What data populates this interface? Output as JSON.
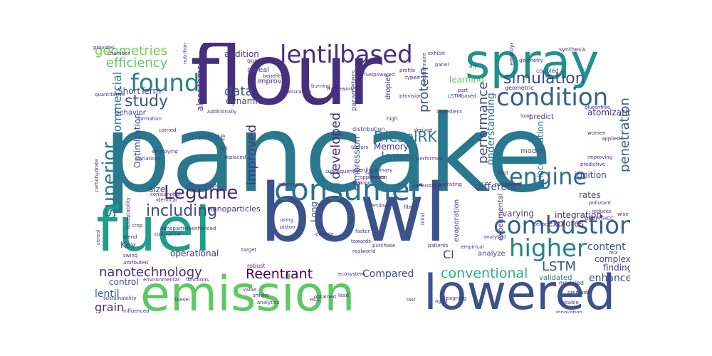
{
  "wordcloud": {
    "words": [
      {
        "text": "pancake",
        "color": "#2a788e"
      },
      {
        "text": "flour",
        "color": "#46307e"
      },
      {
        "text": "bowl",
        "color": "#3b528b"
      },
      {
        "text": "emission",
        "color": "#5ec962"
      },
      {
        "text": "spray",
        "color": "#21918c"
      },
      {
        "text": "lowered",
        "color": "#3b528b"
      },
      {
        "text": "fuel",
        "color": "#1f9e89"
      },
      {
        "text": "consumer",
        "color": "#2c718e"
      },
      {
        "text": "lentilbased",
        "color": "#46307e"
      },
      {
        "text": "condition",
        "color": "#35608d"
      },
      {
        "text": "combustion",
        "color": "#34618d"
      },
      {
        "text": "found",
        "color": "#27808e"
      },
      {
        "text": "higher",
        "color": "#26828e"
      },
      {
        "text": "engine",
        "color": "#2c718e"
      },
      {
        "text": "Legume",
        "color": "#472d7b"
      },
      {
        "text": "study",
        "color": "#39558c"
      },
      {
        "text": "simulation",
        "color": "#3e4a89"
      },
      {
        "text": "including",
        "color": "#3e4a89"
      },
      {
        "text": "superior",
        "color": "#2a788e"
      },
      {
        "text": "nanotechnology",
        "color": "#46307e"
      },
      {
        "text": "Reentrant",
        "color": "#440154"
      },
      {
        "text": "conventional",
        "color": "#29af7f"
      },
      {
        "text": "LSTM",
        "color": "#3b528b"
      },
      {
        "text": "DieselRK",
        "color": "#2a788e"
      },
      {
        "text": "geometries",
        "color": "#7ad151"
      },
      {
        "text": "efficiency",
        "color": "#5ec962"
      },
      {
        "text": "data",
        "color": "#3b528b"
      },
      {
        "text": "improved",
        "color": "#453781"
      },
      {
        "text": "performance",
        "color": "#3e4a89"
      },
      {
        "text": "penetration",
        "color": "#35608d"
      },
      {
        "text": "developed",
        "color": "#46307e"
      },
      {
        "text": "protein",
        "color": "#3b528b"
      },
      {
        "text": "lower",
        "color": "#31688e"
      },
      {
        "text": "commercial",
        "color": "#2a788e"
      },
      {
        "text": "content",
        "color": "#3e4a89"
      },
      {
        "text": "CI",
        "color": "#3e4a89"
      },
      {
        "text": "lentil",
        "color": "#31688e"
      },
      {
        "text": "grain",
        "color": "#46307e"
      },
      {
        "text": "Compared",
        "color": "#3e4a89"
      },
      {
        "text": "enhance",
        "color": "#3e4a89"
      },
      {
        "text": "different",
        "color": "#3e4a89"
      },
      {
        "text": "understanding",
        "color": "#2c718e"
      },
      {
        "text": "experiments",
        "color": "#472d7b"
      },
      {
        "text": "ShortTerm",
        "color": "#3e4a89"
      },
      {
        "text": "algorithms",
        "color": "#46307e"
      },
      {
        "text": "dynamics",
        "color": "#3e4a89"
      },
      {
        "text": "addition",
        "color": "#453781"
      },
      {
        "text": "learning",
        "color": "#5ec962"
      },
      {
        "text": "integration",
        "color": "#46307e"
      },
      {
        "text": "Memory",
        "color": "#46307e"
      },
      {
        "text": "machine",
        "color": "#3b528b"
      },
      {
        "text": "ignition",
        "color": "#3e4a89"
      },
      {
        "text": "varying",
        "color": "#3e4a89"
      },
      {
        "text": "explores",
        "color": "#46307e"
      },
      {
        "text": "incorporation",
        "color": "#2a788e"
      },
      {
        "text": "Optimization",
        "color": "#3b528b"
      },
      {
        "text": "diverse",
        "color": "#3e4a89"
      },
      {
        "text": "nanoparticles",
        "color": "#46307e"
      },
      {
        "text": "compression",
        "color": "#3b528b"
      },
      {
        "text": "Long",
        "color": "#3e4a89"
      },
      {
        "text": "rates",
        "color": "#3e4a89"
      },
      {
        "text": "complex",
        "color": "#3e4a89"
      },
      {
        "text": "atomization",
        "color": "#46307e"
      },
      {
        "text": "findings",
        "color": "#46307e"
      },
      {
        "text": "operational",
        "color": "#46307e"
      },
      {
        "text": "Key",
        "color": "#3e4a89"
      },
      {
        "text": "size",
        "color": "#46307e"
      },
      {
        "text": "control",
        "color": "#3e4a89"
      },
      {
        "text": "models",
        "color": "#3e4a89"
      },
      {
        "text": "validated",
        "color": "#2a788e"
      },
      {
        "text": "analyze",
        "color": "#3e4a89"
      },
      {
        "text": "experimental",
        "color": "#46307e"
      },
      {
        "text": "evaporation",
        "color": "#3e4a89"
      },
      {
        "text": "parameters",
        "color": "#3e4a89"
      },
      {
        "text": "droplet",
        "color": "#46307e"
      },
      {
        "text": "reveal",
        "color": "#3e4a89"
      },
      {
        "text": "improves",
        "color": "#46307e"
      },
      {
        "text": "behavior",
        "color": "#3e4a89"
      },
      {
        "text": "employed",
        "color": "#46307e"
      },
      {
        "text": "predict",
        "color": "#3e4a89"
      },
      {
        "text": "geometric",
        "color": "#46307e"
      },
      {
        "text": "coupled",
        "color": "#3e4a89"
      },
      {
        "text": "synthesis",
        "color": "#46307e"
      },
      {
        "text": "Simultaneously",
        "color": "#46307e"
      },
      {
        "text": "modeled",
        "color": "#46307e"
      },
      {
        "text": "quaternary",
        "color": "#46307e"
      },
      {
        "text": "robust",
        "color": "#46307e"
      },
      {
        "text": "distribution",
        "color": "#3e4a89"
      },
      {
        "text": "Additionally",
        "color": "#46307e"
      },
      {
        "text": "formation",
        "color": "#46307e"
      },
      {
        "text": "carried",
        "color": "#46307e"
      },
      {
        "text": "pollutant",
        "color": "#46307e"
      },
      {
        "text": "reduces",
        "color": "#46307e"
      },
      {
        "text": "ingredient",
        "color": "#46307e"
      },
      {
        "text": "quantitative",
        "color": "#46307e"
      },
      {
        "text": "factors",
        "color": "#46307e"
      },
      {
        "text": "performed",
        "color": "#46307e"
      },
      {
        "text": "making",
        "color": "#46307e"
      },
      {
        "text": "understand",
        "color": "#46307e"
      },
      {
        "text": "operating",
        "color": "#46307e"
      },
      {
        "text": "soot",
        "color": "#46307e"
      },
      {
        "text": "patients",
        "color": "#46307e"
      },
      {
        "text": "faster",
        "color": "#46307e"
      },
      {
        "text": "decade",
        "color": "#46307e"
      },
      {
        "text": "purchase",
        "color": "#46307e"
      },
      {
        "text": "towards",
        "color": "#46307e"
      },
      {
        "text": "realworld",
        "color": "#46307e"
      },
      {
        "text": "celiac",
        "color": "#46307e"
      },
      {
        "text": "analysed",
        "color": "#46307e"
      },
      {
        "text": "empirical",
        "color": "#46307e"
      },
      {
        "text": "blind",
        "color": "#46307e"
      },
      {
        "text": "target",
        "color": "#46307e"
      },
      {
        "text": "value",
        "color": "#46307e"
      },
      {
        "text": "smoke",
        "color": "#46307e"
      },
      {
        "text": "analytics",
        "color": "#46307e"
      },
      {
        "text": "obtained",
        "color": "#46307e"
      },
      {
        "text": "lead",
        "color": "#46307e"
      },
      {
        "text": "ecosystem",
        "color": "#46307e"
      },
      {
        "text": "designing",
        "color": "#46307e"
      },
      {
        "text": "innovation",
        "color": "#46307e"
      },
      {
        "text": "suitable",
        "color": "#46307e"
      },
      {
        "text": "premade",
        "color": "#46307e"
      },
      {
        "text": "sustainability",
        "color": "#46307e"
      },
      {
        "text": "influenced",
        "color": "#46307e"
      },
      {
        "text": "environmental",
        "color": "#46307e"
      },
      {
        "text": "functions",
        "color": "#46307e"
      },
      {
        "text": "blend",
        "color": "#46307e"
      },
      {
        "text": "swing",
        "color": "#46307e"
      },
      {
        "text": "attributed",
        "color": "#46307e"
      },
      {
        "text": "consumption",
        "color": "#46307e"
      },
      {
        "text": "cultivation",
        "color": "#46307e"
      },
      {
        "text": "identical",
        "color": "#46307e"
      },
      {
        "text": "variations",
        "color": "#46307e"
      },
      {
        "text": "employing",
        "color": "#46307e"
      },
      {
        "text": "carbohydrate",
        "color": "#46307e"
      },
      {
        "text": "nanoparticleenhanced",
        "color": "#46307e"
      },
      {
        "text": "burning",
        "color": "#46307e"
      },
      {
        "text": "provides",
        "color": "#46307e"
      },
      {
        "text": "chamber",
        "color": "#46307e"
      },
      {
        "text": "nutritional",
        "color": "#46307e"
      },
      {
        "text": "framework",
        "color": "#46307e"
      },
      {
        "text": "exhibit",
        "color": "#46307e"
      },
      {
        "text": "dry",
        "color": "#46307e"
      },
      {
        "text": "geometry",
        "color": "#46307e"
      },
      {
        "text": "load",
        "color": "#46307e"
      },
      {
        "text": "high",
        "color": "#46307e"
      },
      {
        "text": "derived",
        "color": "#46307e"
      },
      {
        "text": "women",
        "color": "#46307e"
      },
      {
        "text": "predictive",
        "color": "#46307e"
      },
      {
        "text": "improving",
        "color": "#46307e"
      },
      {
        "text": "applied",
        "color": "#46307e"
      },
      {
        "text": "nontrained",
        "color": "#46307e"
      },
      {
        "text": "interdisciplinary",
        "color": "#46307e"
      },
      {
        "text": "subsequently",
        "color": "#46307e"
      },
      {
        "text": "salt",
        "color": "#46307e"
      },
      {
        "text": "application",
        "color": "#46307e"
      },
      {
        "text": "replaced",
        "color": "#46307e"
      },
      {
        "text": "full",
        "color": "#46307e"
      },
      {
        "text": "inferences",
        "color": "#46307e"
      },
      {
        "text": "mixes",
        "color": "#46307e"
      },
      {
        "text": "fertiliser",
        "color": "#46307e"
      },
      {
        "text": "fibre",
        "color": "#46307e"
      },
      {
        "text": "using",
        "color": "#46307e"
      },
      {
        "text": "piston",
        "color": "#46307e"
      },
      {
        "text": "benefits",
        "color": "#46307e"
      },
      {
        "text": "HCC",
        "color": "#46307e"
      },
      {
        "text": "Diesel",
        "color": "#46307e"
      },
      {
        "text": "aged",
        "color": "#46307e"
      },
      {
        "text": "last",
        "color": "#46307e"
      },
      {
        "text": "LSTMbased",
        "color": "#46307e"
      },
      {
        "text": "questionnaire",
        "color": "#46307e"
      },
      {
        "text": "DBDMTHCC",
        "color": "#46307e"
      },
      {
        "text": "glutenfree",
        "color": "#46307e"
      },
      {
        "text": "mix",
        "color": "#46307e"
      },
      {
        "text": "types",
        "color": "#46307e"
      },
      {
        "text": "profile",
        "color": "#46307e"
      },
      {
        "text": "provision",
        "color": "#46307e"
      },
      {
        "text": "calculation",
        "color": "#46307e"
      },
      {
        "text": "fuelpowered",
        "color": "#46307e"
      },
      {
        "text": "acceptability",
        "color": "#46307e"
      },
      {
        "text": "panel",
        "color": "#46307e"
      },
      {
        "text": "part",
        "color": "#46307e"
      },
      {
        "text": "wise",
        "color": "#46307e"
      },
      {
        "text": "cereal",
        "color": "#46307e"
      },
      {
        "text": "crop",
        "color": "#46307e"
      }
    ]
  }
}
